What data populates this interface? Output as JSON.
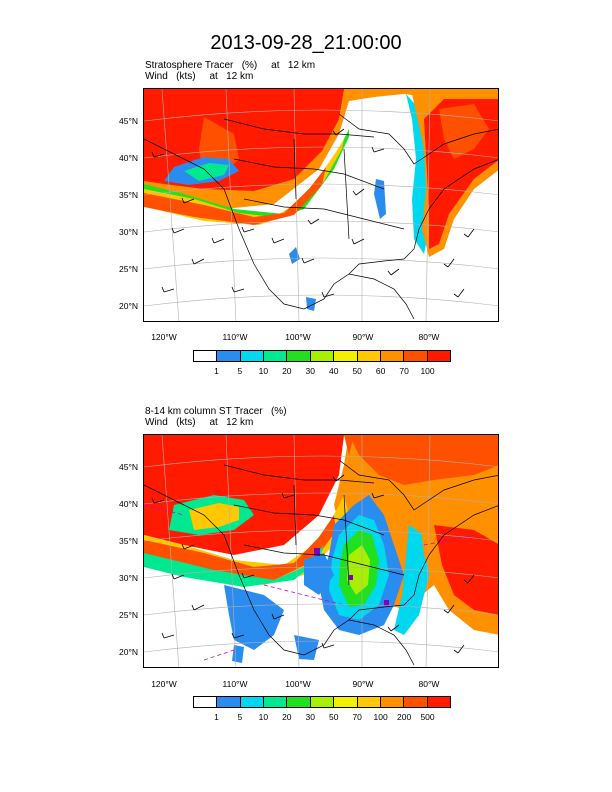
{
  "title": "2013-09-28_21:00:00",
  "panels": [
    {
      "id": "top",
      "subtitle_line1": "Stratosphere Tracer   (%)     at   12 km",
      "subtitle_line2": "Wind   (kts)     at   12 km",
      "lat_labels": [
        "45°N",
        "40°N",
        "35°N",
        "30°N",
        "25°N",
        "20°N"
      ],
      "lon_labels": [
        "120°W",
        "110°W",
        "100°W",
        "90°W",
        "80°W"
      ],
      "colorbar_labels": [
        "1",
        "5",
        "10",
        "20",
        "30",
        "40",
        "50",
        "60",
        "70",
        "100"
      ]
    },
    {
      "id": "bottom",
      "subtitle_line1": "8-14 km column ST Tracer   (%)",
      "subtitle_line2": "Wind   (kts)     at   12 km",
      "lat_labels": [
        "45°N",
        "40°N",
        "35°N",
        "30°N",
        "25°N",
        "20°N"
      ],
      "lon_labels": [
        "120°W",
        "110°W",
        "100°W",
        "90°W",
        "80°W"
      ],
      "colorbar_labels": [
        "1",
        "5",
        "10",
        "20",
        "30",
        "50",
        "70",
        "100",
        "200",
        "500"
      ]
    }
  ],
  "colorbar_colors": [
    "#ffffff",
    "#2b8cf0",
    "#00d8f0",
    "#00e890",
    "#20e020",
    "#a8f000",
    "#f0f000",
    "#ffc800",
    "#ff9000",
    "#ff5000",
    "#ff1a00"
  ]
}
